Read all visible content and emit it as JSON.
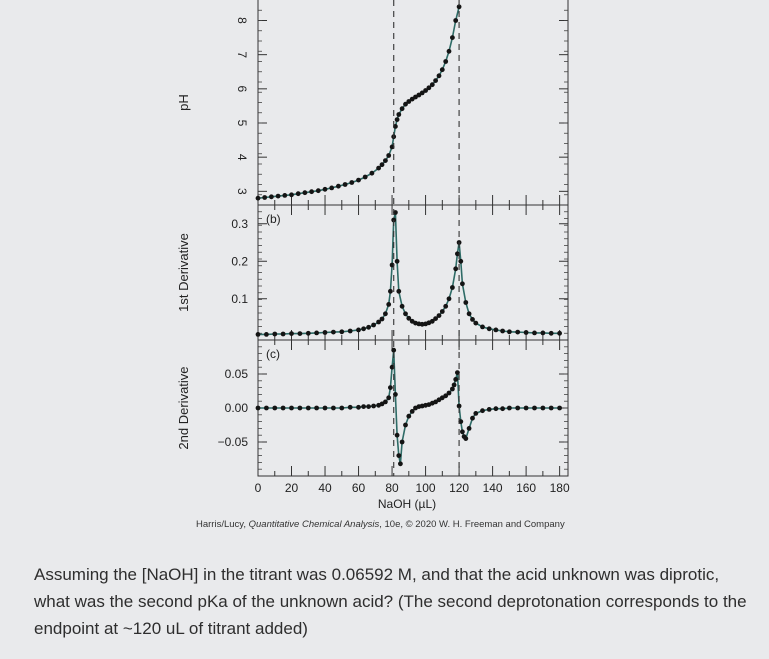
{
  "chart_data": [
    {
      "type": "scatter",
      "panel": "a",
      "ylabel": "pH",
      "ylim": [
        2.6,
        8.6
      ],
      "yticks": [
        3,
        4,
        5,
        6,
        7,
        8
      ],
      "x": [
        0,
        4,
        8,
        12,
        16,
        20,
        24,
        28,
        32,
        36,
        40,
        44,
        48,
        52,
        56,
        60,
        64,
        68,
        72,
        74,
        76,
        78,
        80,
        81,
        82,
        83,
        84,
        86,
        88,
        90,
        92,
        94,
        96,
        98,
        100,
        102,
        104,
        106,
        108,
        110,
        112,
        114,
        116,
        118,
        120
      ],
      "y": [
        2.8,
        2.82,
        2.84,
        2.86,
        2.88,
        2.9,
        2.93,
        2.96,
        2.99,
        3.02,
        3.06,
        3.1,
        3.15,
        3.2,
        3.26,
        3.33,
        3.42,
        3.53,
        3.68,
        3.78,
        3.9,
        4.05,
        4.3,
        4.6,
        4.9,
        5.1,
        5.25,
        5.42,
        5.55,
        5.63,
        5.7,
        5.76,
        5.82,
        5.88,
        5.95,
        6.03,
        6.12,
        6.24,
        6.38,
        6.56,
        6.8,
        7.1,
        7.5,
        8.0,
        8.4
      ]
    },
    {
      "type": "scatter",
      "panel": "b",
      "label": "(b)",
      "ylabel": "1st Derivative",
      "ylim": [
        -0.01,
        0.35
      ],
      "yticks": [
        0.1,
        0.2,
        0.3
      ],
      "x": [
        0,
        5,
        10,
        15,
        20,
        25,
        30,
        35,
        40,
        45,
        50,
        55,
        60,
        63,
        66,
        69,
        72,
        74,
        76,
        78,
        79,
        80,
        81,
        82,
        83,
        84,
        86,
        88,
        90,
        92,
        94,
        96,
        98,
        100,
        102,
        104,
        106,
        108,
        110,
        112,
        114,
        116,
        118,
        119,
        120,
        121,
        122,
        124,
        126,
        128,
        130,
        134,
        138,
        142,
        146,
        150,
        155,
        160,
        165,
        170,
        175,
        180
      ],
      "y": [
        0.005,
        0.005,
        0.006,
        0.006,
        0.007,
        0.007,
        0.008,
        0.009,
        0.01,
        0.011,
        0.012,
        0.014,
        0.017,
        0.02,
        0.024,
        0.03,
        0.038,
        0.046,
        0.06,
        0.085,
        0.12,
        0.19,
        0.31,
        0.33,
        0.2,
        0.12,
        0.08,
        0.06,
        0.048,
        0.04,
        0.035,
        0.033,
        0.032,
        0.033,
        0.036,
        0.04,
        0.047,
        0.055,
        0.066,
        0.08,
        0.1,
        0.13,
        0.18,
        0.22,
        0.25,
        0.2,
        0.14,
        0.09,
        0.06,
        0.045,
        0.035,
        0.025,
        0.02,
        0.017,
        0.014,
        0.012,
        0.011,
        0.01,
        0.009,
        0.009,
        0.008,
        0.008
      ]
    },
    {
      "type": "scatter",
      "panel": "c",
      "label": "(c)",
      "ylabel": "2nd Derivative",
      "xlabel": "NaOH (µL)",
      "xlim": [
        0,
        185
      ],
      "xticks": [
        0,
        20,
        40,
        60,
        80,
        100,
        120,
        140,
        160,
        180
      ],
      "ylim": [
        -0.1,
        0.1
      ],
      "yticks": [
        0.05,
        0.0,
        -0.05
      ],
      "ytick_labels": [
        "0.05",
        "0.00",
        "−0.05"
      ],
      "x": [
        0,
        5,
        10,
        15,
        20,
        25,
        30,
        35,
        40,
        45,
        50,
        55,
        60,
        63,
        66,
        69,
        72,
        74,
        76,
        78,
        79,
        80,
        81,
        82,
        83,
        84,
        85,
        86,
        88,
        90,
        92,
        94,
        96,
        98,
        100,
        102,
        104,
        106,
        108,
        110,
        112,
        114,
        116,
        117,
        118,
        119,
        120,
        121,
        122,
        123,
        124,
        126,
        128,
        130,
        134,
        138,
        142,
        146,
        150,
        155,
        160,
        165,
        170,
        175,
        180
      ],
      "y": [
        0,
        0,
        0,
        0,
        0,
        0,
        0,
        0,
        0,
        0,
        0,
        0.001,
        0.001,
        0.002,
        0.002,
        0.003,
        0.004,
        0.006,
        0.009,
        0.015,
        0.03,
        0.06,
        0.085,
        0.02,
        -0.04,
        -0.07,
        -0.082,
        -0.05,
        -0.025,
        -0.012,
        -0.005,
        0,
        0.002,
        0.003,
        0.004,
        0.005,
        0.007,
        0.009,
        0.012,
        0.015,
        0.018,
        0.022,
        0.028,
        0.034,
        0.042,
        0.052,
        0.003,
        -0.02,
        -0.035,
        -0.042,
        -0.045,
        -0.03,
        -0.015,
        -0.008,
        -0.004,
        -0.002,
        -0.001,
        -0.001,
        0,
        0,
        0,
        0,
        0,
        0,
        0
      ]
    }
  ],
  "endpoint_lines_x": [
    81,
    120
  ],
  "credit": {
    "authors": "Harris/Lucy, ",
    "book": "Quantitative Chemical Analysis",
    "rest": ", 10e, © 2020 W. H. Freeman and Company"
  },
  "question": "Assuming the [NaOH] in the titrant was 0.06592 M, and that the acid unknown was diprotic, what was the second pKa of the unknown acid? (The second deprotonation corresponds to the endpoint at ~120 uL of titrant added)"
}
